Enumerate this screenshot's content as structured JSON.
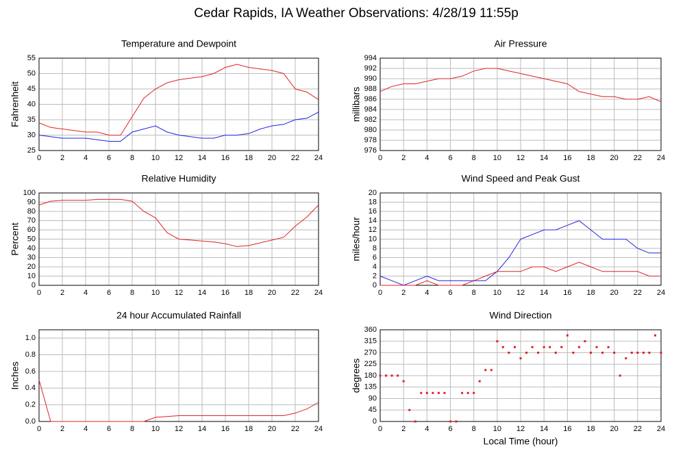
{
  "title": "Cedar Rapids, IA Weather Observations: 4/28/19 11:55p",
  "chart_data": [
    {
      "type": "line",
      "title": "Temperature and Dewpoint",
      "ylabel": "Fahrenheit",
      "x": [
        0,
        1,
        2,
        3,
        4,
        5,
        6,
        7,
        8,
        9,
        10,
        11,
        12,
        13,
        14,
        15,
        16,
        17,
        18,
        19,
        20,
        21,
        22,
        23,
        24
      ],
      "series": [
        {
          "color": "#e02020",
          "values": [
            34,
            32.5,
            32,
            31.5,
            31,
            31,
            30,
            30,
            36,
            42,
            45,
            47,
            48,
            48.5,
            49,
            50,
            52,
            53,
            52,
            51.5,
            51,
            50,
            45,
            44,
            41.5
          ]
        },
        {
          "color": "#2020e0",
          "values": [
            30,
            29.5,
            29,
            29,
            29,
            28.5,
            28,
            28,
            31,
            32,
            33,
            31,
            30,
            29.5,
            29,
            29,
            30,
            30,
            30.5,
            32,
            33,
            33.5,
            35,
            35.5,
            37.5
          ]
        }
      ],
      "xlim": [
        0,
        24
      ],
      "xticks": [
        0,
        2,
        4,
        6,
        8,
        10,
        12,
        14,
        16,
        18,
        20,
        22,
        24
      ],
      "ylim": [
        25,
        55
      ],
      "yticks": [
        25,
        30,
        35,
        40,
        45,
        50,
        55
      ],
      "grid": true
    },
    {
      "type": "line",
      "title": "Air Pressure",
      "ylabel": "millibars",
      "x": [
        0,
        1,
        2,
        3,
        4,
        5,
        6,
        7,
        8,
        9,
        10,
        11,
        12,
        13,
        14,
        15,
        16,
        17,
        18,
        19,
        20,
        21,
        22,
        23,
        24
      ],
      "series": [
        {
          "color": "#e02020",
          "values": [
            987.5,
            988.5,
            989,
            989,
            989.5,
            990,
            990,
            990.5,
            991.5,
            992,
            992,
            991.5,
            991,
            990.5,
            990,
            989.5,
            989,
            987.5,
            987,
            986.5,
            986.5,
            986,
            986,
            986.5,
            985.5
          ]
        }
      ],
      "xlim": [
        0,
        24
      ],
      "xticks": [
        0,
        2,
        4,
        6,
        8,
        10,
        12,
        14,
        16,
        18,
        20,
        22,
        24
      ],
      "ylim": [
        976,
        994
      ],
      "yticks": [
        976,
        978,
        980,
        982,
        984,
        986,
        988,
        990,
        992,
        994
      ],
      "grid": true
    },
    {
      "type": "line",
      "title": "Relative Humidity",
      "ylabel": "Percent",
      "x": [
        0,
        1,
        2,
        3,
        4,
        5,
        6,
        7,
        8,
        9,
        10,
        11,
        12,
        13,
        14,
        15,
        16,
        17,
        18,
        19,
        20,
        21,
        22,
        23,
        24
      ],
      "series": [
        {
          "color": "#e02020",
          "values": [
            87,
            91,
            92,
            92,
            92,
            93,
            93,
            93,
            91,
            80,
            73,
            57,
            50,
            49,
            48,
            47,
            45,
            42,
            43,
            46,
            49,
            52,
            64,
            74,
            87
          ]
        }
      ],
      "xlim": [
        0,
        24
      ],
      "xticks": [
        0,
        2,
        4,
        6,
        8,
        10,
        12,
        14,
        16,
        18,
        20,
        22,
        24
      ],
      "ylim": [
        0,
        100
      ],
      "yticks": [
        0,
        10,
        20,
        30,
        40,
        50,
        60,
        70,
        80,
        90,
        100
      ],
      "grid": true
    },
    {
      "type": "line",
      "title": "Wind Speed and Peak Gust",
      "ylabel": "miles/hour",
      "x": [
        0,
        1,
        2,
        3,
        4,
        5,
        6,
        7,
        8,
        9,
        10,
        11,
        12,
        13,
        14,
        15,
        16,
        17,
        18,
        19,
        20,
        21,
        22,
        23,
        24
      ],
      "series": [
        {
          "color": "#2020e0",
          "values": [
            2,
            1,
            0,
            1,
            2,
            1,
            1,
            1,
            1,
            1,
            3,
            6,
            10,
            11,
            12,
            12,
            13,
            14,
            12,
            10,
            10,
            10,
            8,
            7,
            7
          ]
        },
        {
          "color": "#e02020",
          "values": [
            0,
            0,
            0,
            0,
            1,
            0,
            0,
            0,
            1,
            2,
            3,
            3,
            3,
            4,
            4,
            3,
            4,
            5,
            4,
            3,
            3,
            3,
            3,
            2,
            2
          ]
        }
      ],
      "xlim": [
        0,
        24
      ],
      "xticks": [
        0,
        2,
        4,
        6,
        8,
        10,
        12,
        14,
        16,
        18,
        20,
        22,
        24
      ],
      "ylim": [
        0,
        20
      ],
      "yticks": [
        0,
        2,
        4,
        6,
        8,
        10,
        12,
        14,
        16,
        18,
        20
      ],
      "grid": true
    },
    {
      "type": "line",
      "title": "24 hour Accumulated Rainfall",
      "ylabel": "Inches",
      "x": [
        0,
        1,
        2,
        3,
        4,
        5,
        6,
        7,
        8,
        9,
        10,
        11,
        12,
        13,
        14,
        15,
        16,
        17,
        18,
        19,
        20,
        21,
        22,
        23,
        24
      ],
      "series": [
        {
          "color": "#e02020",
          "values": [
            0.5,
            0,
            0,
            0,
            0,
            0,
            0,
            0,
            0,
            0,
            0.05,
            0.06,
            0.07,
            0.07,
            0.07,
            0.07,
            0.07,
            0.07,
            0.07,
            0.07,
            0.07,
            0.07,
            0.1,
            0.15,
            0.23
          ]
        }
      ],
      "xlim": [
        0,
        24
      ],
      "xticks": [
        0,
        2,
        4,
        6,
        8,
        10,
        12,
        14,
        16,
        18,
        20,
        22,
        24
      ],
      "ylim": [
        0,
        1.1
      ],
      "yticks": [
        {
          "value": 0,
          "label": "0.0"
        },
        0.2,
        0.4,
        0.6,
        0.8,
        {
          "value": 1,
          "label": "1.0"
        }
      ],
      "grid": true
    },
    {
      "type": "scatter",
      "title": "Wind Direction",
      "ylabel": "degrees",
      "xlabel": "Local Time (hour)",
      "x": [
        0,
        0.5,
        1,
        1.5,
        2,
        2.5,
        3,
        3.5,
        4,
        4.5,
        5,
        5.5,
        6,
        6.5,
        7,
        7.5,
        8,
        8.5,
        9,
        9.5,
        10,
        10.5,
        11,
        11.5,
        12,
        12.5,
        13,
        13.5,
        14,
        14.5,
        15,
        15.5,
        16,
        16.5,
        17,
        17.5,
        18,
        18.5,
        19,
        19.5,
        20,
        20.5,
        21,
        21.5,
        22,
        22.5,
        23,
        23.5,
        24
      ],
      "values": [
        180,
        180,
        180,
        180,
        158,
        45,
        0,
        112,
        112,
        112,
        112,
        112,
        0,
        0,
        112,
        112,
        112,
        158,
        202,
        202,
        315,
        292,
        270,
        292,
        248,
        270,
        292,
        270,
        292,
        292,
        270,
        292,
        338,
        270,
        292,
        315,
        270,
        292,
        270,
        292,
        270,
        180,
        248,
        270,
        270,
        270,
        270,
        338,
        270
      ],
      "color": "#e02020",
      "xlim": [
        0,
        24
      ],
      "xticks": [
        0,
        2,
        4,
        6,
        8,
        10,
        12,
        14,
        16,
        18,
        20,
        22,
        24
      ],
      "ylim": [
        0,
        360
      ],
      "yticks": [
        0,
        45,
        90,
        135,
        180,
        225,
        270,
        315,
        360
      ],
      "grid": true
    }
  ]
}
